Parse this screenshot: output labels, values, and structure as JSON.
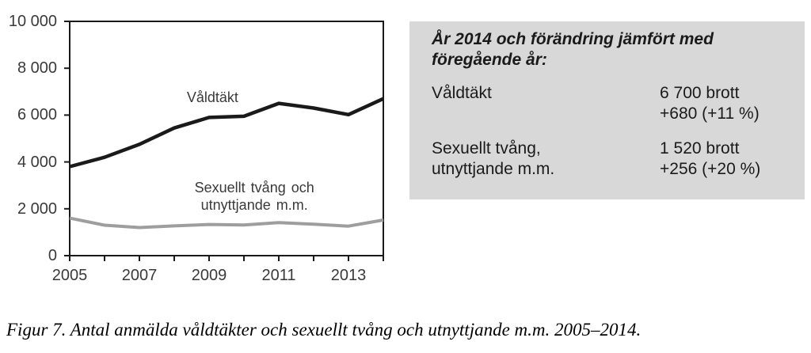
{
  "colors": {
    "axis": "#1a1a1a",
    "valdtakt_line": "#1a1a1a",
    "sexuellt_line": "#9e9e9e",
    "infobox_bg": "#d8d8d8",
    "axis_text": "#3a3a3a"
  },
  "chart_data": {
    "type": "line",
    "title": "",
    "xlabel": "",
    "ylabel": "",
    "grid": false,
    "legend_position": "inline-labels",
    "xlim": [
      2005,
      2014
    ],
    "ylim": [
      0,
      10000
    ],
    "x": [
      2005,
      2006,
      2007,
      2008,
      2009,
      2010,
      2011,
      2012,
      2013,
      2014
    ],
    "xticks": [
      {
        "x": 2005,
        "label": "2005"
      },
      {
        "x": 2006,
        "label": ""
      },
      {
        "x": 2007,
        "label": "2007"
      },
      {
        "x": 2008,
        "label": ""
      },
      {
        "x": 2009,
        "label": "2009"
      },
      {
        "x": 2010,
        "label": ""
      },
      {
        "x": 2011,
        "label": "2011"
      },
      {
        "x": 2012,
        "label": ""
      },
      {
        "x": 2013,
        "label": "2013"
      },
      {
        "x": 2014,
        "label": ""
      }
    ],
    "yticks": [
      {
        "value": 0,
        "label": "0"
      },
      {
        "value": 2000,
        "label": "2 000"
      },
      {
        "value": 4000,
        "label": "4 000"
      },
      {
        "value": 6000,
        "label": "6 000"
      },
      {
        "value": 8000,
        "label": "8 000"
      },
      {
        "value": 10000,
        "label": "10 000"
      }
    ],
    "series": [
      {
        "name": "Våldtäkt",
        "color": "#1a1a1a",
        "stroke_width": 4.5,
        "values": [
          3800,
          4200,
          4750,
          5450,
          5900,
          5950,
          6500,
          6300,
          6020,
          6700
        ]
      },
      {
        "name": "Sexuellt tvång och utnyttjande m.m.",
        "color": "#9e9e9e",
        "stroke_width": 4,
        "values": [
          1600,
          1300,
          1200,
          1270,
          1330,
          1310,
          1410,
          1340,
          1260,
          1520
        ]
      }
    ],
    "annotations": [
      {
        "lines": [
          "Våldtäkt"
        ],
        "x": 2009.1,
        "y": 6760
      },
      {
        "lines": [
          "Sexuellt tvång och",
          "utnyttjande m.m."
        ],
        "x": 2010.3,
        "y": 2520
      }
    ]
  },
  "infobox": {
    "title_line1": "År 2014 och förändring jämfört med",
    "title_line2": "föregående år:",
    "rows": [
      {
        "label_line1": "Våldtäkt",
        "label_line2": "",
        "value_line1": "6 700 brott",
        "value_line2": "+680 (+11 %)"
      },
      {
        "label_line1": "Sexuellt tvång,",
        "label_line2": "utnyttjande m.m.",
        "value_line1": "1 520 brott",
        "value_line2": "+256 (+20 %)"
      }
    ]
  },
  "caption": "Figur 7. Antal anmälda våldtäkter och sexuellt tvång och utnyttjande m.m. 2005–2014."
}
